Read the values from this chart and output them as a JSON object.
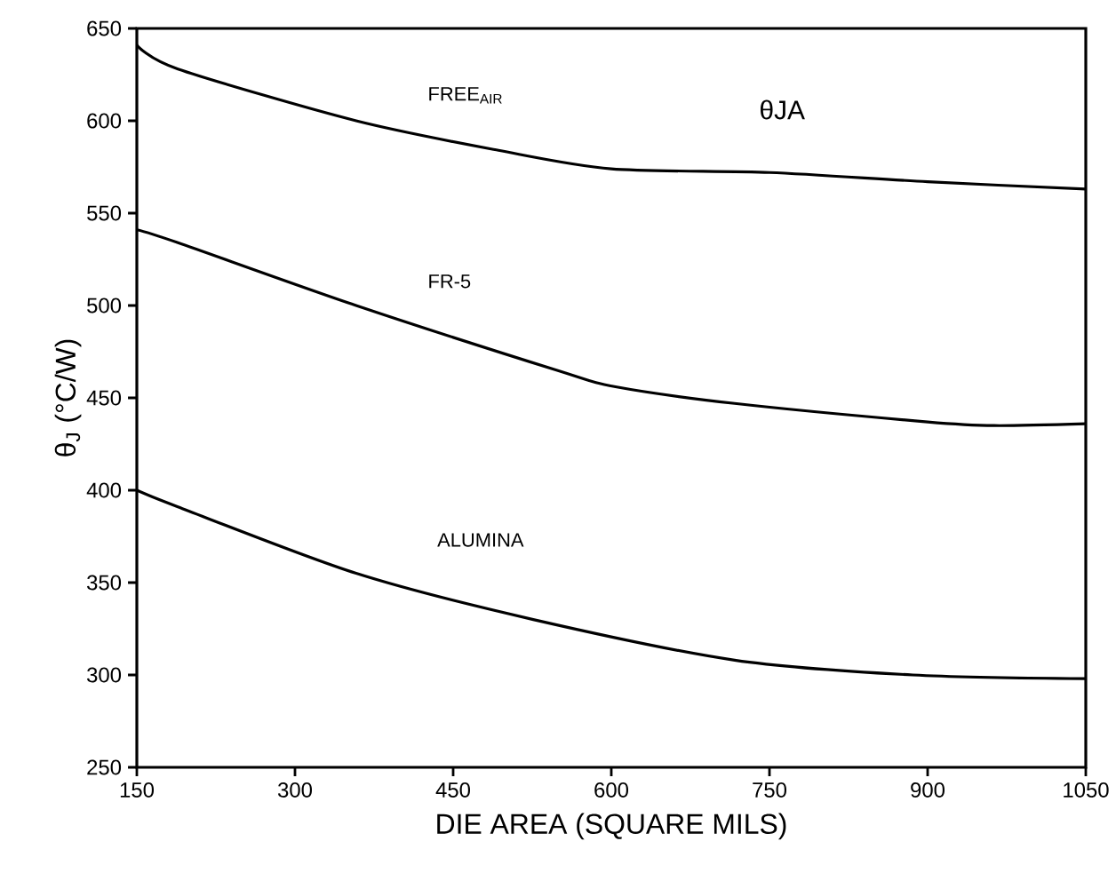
{
  "chart_data": {
    "type": "line",
    "xlabel": "DIE AREA (SQUARE MILS)",
    "ylabel": "θ$_{J}$ (°C/W)",
    "annotations": [
      "θJA"
    ],
    "xlim": [
      150,
      1050
    ],
    "xticks": [
      150,
      300,
      450,
      600,
      750,
      900,
      1050
    ],
    "ylim": [
      250,
      650
    ],
    "yticks": [
      250,
      300,
      350,
      400,
      450,
      500,
      550,
      600,
      650
    ],
    "grid": false,
    "legend": false,
    "marker": "none",
    "line_style": "solid",
    "series": [
      {
        "name": "FREE$_{AIR}$",
        "color": "#000000",
        "x": [
          150,
          189,
          358,
          493,
          600,
          750,
          900,
          1050
        ],
        "values": [
          641,
          628,
          600,
          584,
          574,
          572,
          567,
          563
        ]
      },
      {
        "name": "FR-5",
        "color": "#000000",
        "x": [
          150,
          189,
          358,
          548,
          604,
          717,
          900,
          963,
          1050
        ],
        "values": [
          541,
          534,
          500,
          465,
          456,
          447,
          437,
          435,
          436
        ]
      },
      {
        "name": "ALUMINA",
        "color": "#000000",
        "x": [
          150,
          189,
          358,
          526,
          717,
          886,
          1050
        ],
        "values": [
          400,
          391,
          355,
          330,
          308,
          300,
          298
        ]
      }
    ]
  }
}
